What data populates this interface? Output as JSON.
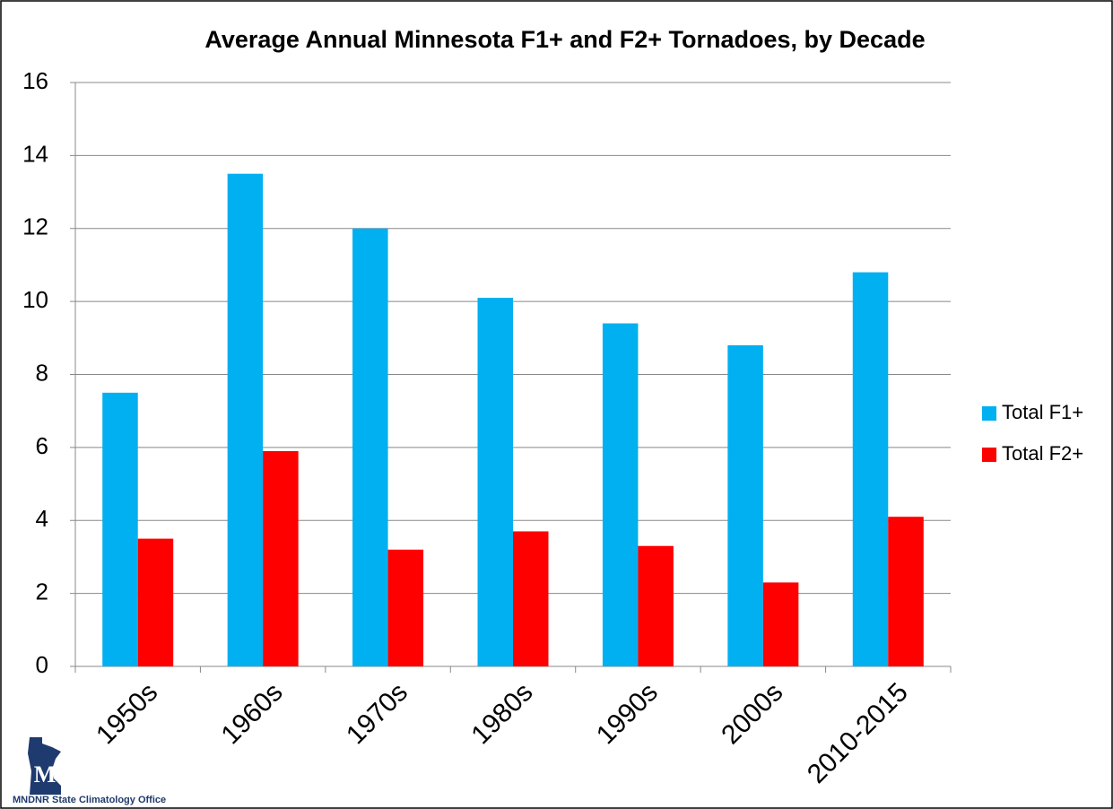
{
  "chart_data": {
    "type": "bar",
    "title": "Average Annual Minnesota F1+ and F2+ Tornadoes, by Decade",
    "categories": [
      "1950s",
      "1960s",
      "1970s",
      "1980s",
      "1990s",
      "2000s",
      "2010-2015"
    ],
    "series": [
      {
        "name": "Total F1+",
        "color": "#00b0f0",
        "values": [
          7.5,
          13.5,
          12.0,
          10.1,
          9.4,
          8.8,
          10.8
        ]
      },
      {
        "name": "Total F2+",
        "color": "#ff0000",
        "values": [
          3.5,
          5.9,
          3.2,
          3.7,
          3.3,
          2.3,
          4.1
        ]
      }
    ],
    "ylim": [
      0,
      16
    ],
    "yticks": [
      0,
      2,
      4,
      6,
      8,
      10,
      12,
      14,
      16
    ],
    "grid": true,
    "legend": "right",
    "source": "MNDNR State Climatology Office"
  }
}
